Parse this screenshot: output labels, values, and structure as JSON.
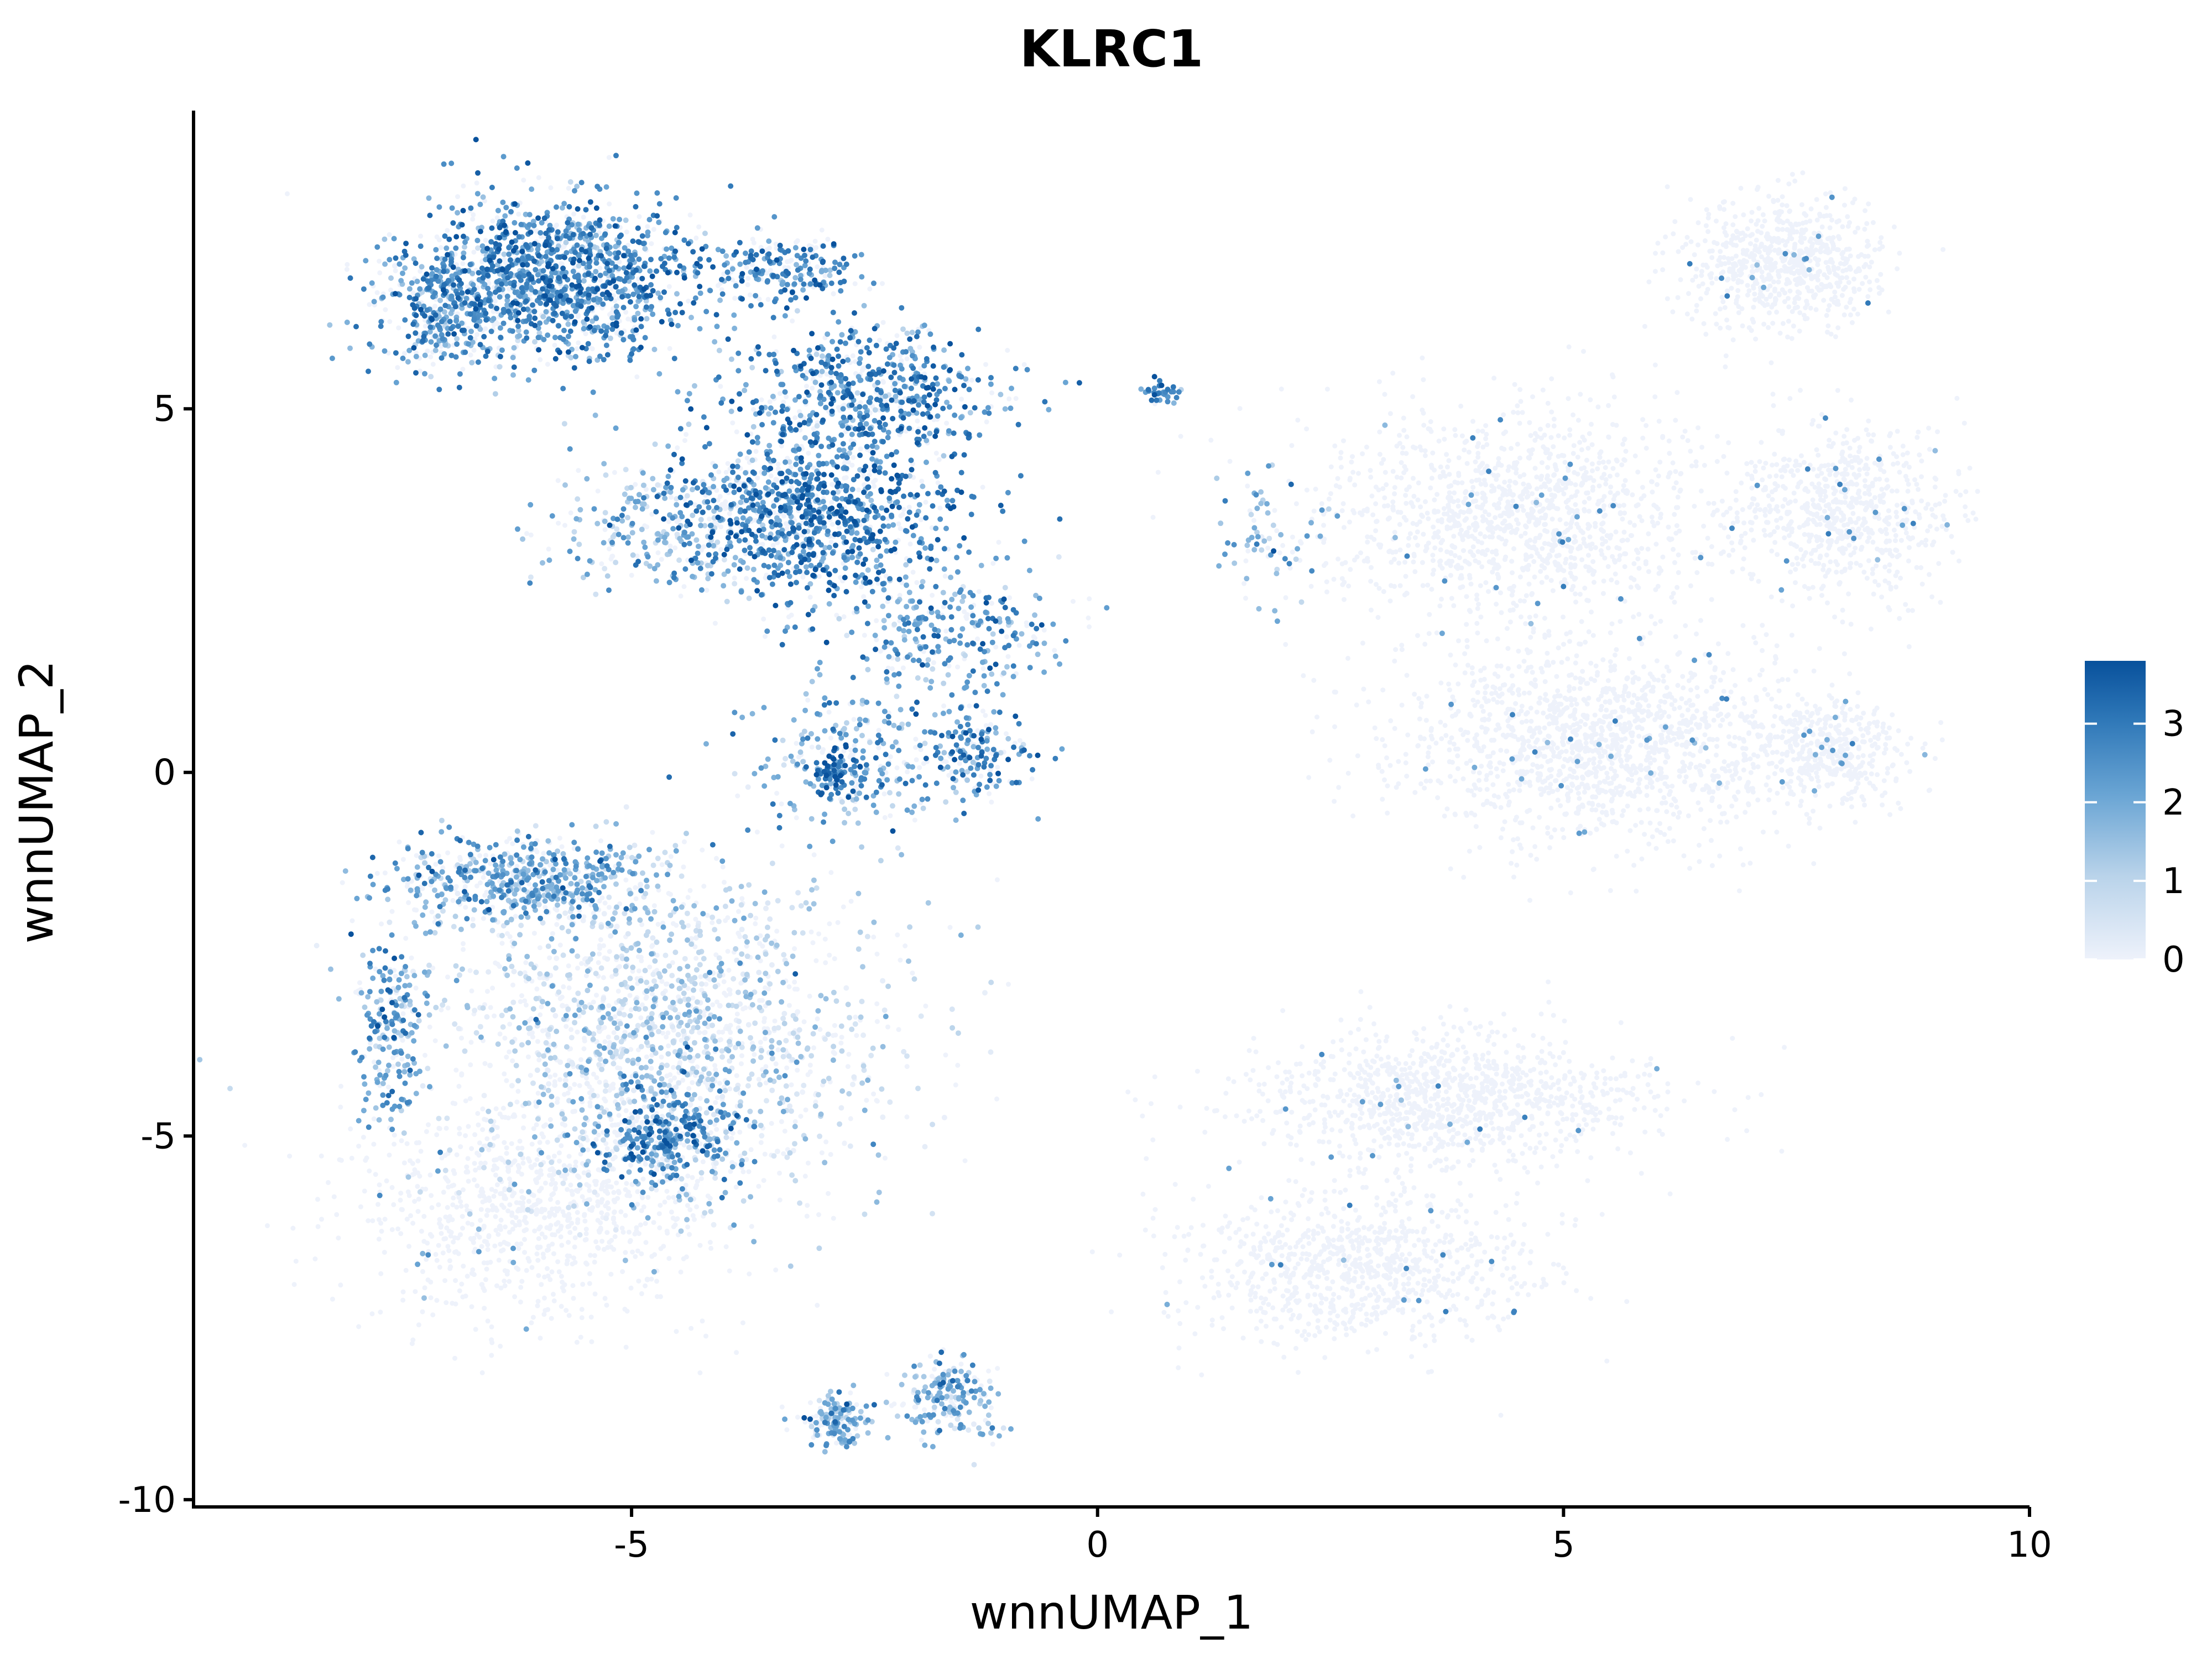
{
  "chart_data": {
    "type": "scatter",
    "title": "KLRC1",
    "xlabel": "wnnUMAP_1",
    "ylabel": "wnnUMAP_2",
    "xlim": [
      -9.7,
      10
    ],
    "ylim": [
      -10.1,
      9.1
    ],
    "x_ticks": [
      -5,
      0,
      5,
      10
    ],
    "x_tick_labels": [
      "-5",
      "0",
      "5",
      "10"
    ],
    "y_ticks": [
      -10,
      -5,
      0,
      5
    ],
    "y_tick_labels": [
      "-10",
      "-5",
      "0",
      "5"
    ],
    "grid": false,
    "legend": {
      "placement": "right",
      "type": "continuous colorbar",
      "min": 0,
      "max": 3.8,
      "ticks": [
        0,
        1,
        2,
        3
      ],
      "tick_labels": [
        "0",
        "1",
        "2",
        "3"
      ],
      "color_low": "#eef2fb",
      "color_high": "#08519c"
    },
    "point_size": "small",
    "clusters": [
      {
        "name": "upper-left-A",
        "center": [
          -5.8,
          6.8
        ],
        "spread": [
          1.0,
          0.7
        ],
        "n": 1400,
        "expr": 2.6
      },
      {
        "name": "upper-left-B",
        "center": [
          -7.0,
          6.3
        ],
        "spread": [
          0.5,
          0.5
        ],
        "n": 300,
        "expr": 2.3
      },
      {
        "name": "upper-left-C",
        "center": [
          -3.4,
          6.9
        ],
        "spread": [
          0.5,
          0.3
        ],
        "n": 220,
        "expr": 2.7
      },
      {
        "name": "upper-mid-A",
        "center": [
          -2.4,
          5.2
        ],
        "spread": [
          0.9,
          0.6
        ],
        "n": 600,
        "expr": 2.5
      },
      {
        "name": "upper-mid-B",
        "center": [
          -3.0,
          3.6
        ],
        "spread": [
          1.0,
          0.8
        ],
        "n": 1000,
        "expr": 2.8
      },
      {
        "name": "upper-mid-C",
        "center": [
          -4.6,
          3.4
        ],
        "spread": [
          0.9,
          0.6
        ],
        "n": 300,
        "expr": 1.6
      },
      {
        "name": "upper-mid-D",
        "center": [
          -1.6,
          2.0
        ],
        "spread": [
          0.8,
          0.6
        ],
        "n": 300,
        "expr": 2.2
      },
      {
        "name": "mid-A",
        "center": [
          -2.6,
          0.2
        ],
        "spread": [
          0.8,
          0.7
        ],
        "n": 250,
        "expr": 2.0
      },
      {
        "name": "mid-B",
        "center": [
          -1.3,
          0.3
        ],
        "spread": [
          0.4,
          0.4
        ],
        "n": 160,
        "expr": 2.6
      },
      {
        "name": "mid-C",
        "center": [
          -2.8,
          0.0
        ],
        "spread": [
          0.18,
          0.2
        ],
        "n": 90,
        "expr": 2.9
      },
      {
        "name": "small-island",
        "center": [
          0.7,
          5.2
        ],
        "spread": [
          0.12,
          0.1
        ],
        "n": 40,
        "expr": 2.7
      },
      {
        "name": "stream",
        "center": [
          1.8,
          3.2
        ],
        "spread": [
          0.5,
          0.6
        ],
        "n": 70,
        "expr": 1.8
      },
      {
        "name": "right-top",
        "center": [
          7.4,
          7.0
        ],
        "spread": [
          0.7,
          0.6
        ],
        "n": 700,
        "expr": 0.05
      },
      {
        "name": "right-mid-A",
        "center": [
          4.5,
          3.5
        ],
        "spread": [
          1.4,
          1.0
        ],
        "n": 1300,
        "expr": 0.06
      },
      {
        "name": "right-mid-B",
        "center": [
          8.0,
          3.6
        ],
        "spread": [
          0.8,
          0.8
        ],
        "n": 700,
        "expr": 0.05
      },
      {
        "name": "right-low-A",
        "center": [
          5.4,
          0.4
        ],
        "spread": [
          1.5,
          0.9
        ],
        "n": 1500,
        "expr": 0.07
      },
      {
        "name": "right-low-B",
        "center": [
          7.9,
          0.3
        ],
        "spread": [
          0.5,
          0.5
        ],
        "n": 400,
        "expr": 0.05
      },
      {
        "name": "lower-left-A",
        "center": [
          -6.1,
          -1.5
        ],
        "spread": [
          1.0,
          0.4
        ],
        "n": 600,
        "expr": 1.9
      },
      {
        "name": "lower-left-B",
        "center": [
          -7.6,
          -3.4
        ],
        "spread": [
          0.25,
          0.9
        ],
        "n": 220,
        "expr": 2.2
      },
      {
        "name": "lower-left-C",
        "center": [
          -4.7,
          -3.6
        ],
        "spread": [
          1.6,
          1.5
        ],
        "n": 1700,
        "expr": 0.7
      },
      {
        "name": "lower-left-D",
        "center": [
          -4.6,
          -5.0
        ],
        "spread": [
          0.5,
          0.5
        ],
        "n": 350,
        "expr": 2.5
      },
      {
        "name": "lower-left-E",
        "center": [
          -6.0,
          -6.0
        ],
        "spread": [
          1.3,
          1.0
        ],
        "n": 900,
        "expr": 0.1
      },
      {
        "name": "lower-right-A",
        "center": [
          3.8,
          -4.5
        ],
        "spread": [
          1.4,
          0.6
        ],
        "n": 1100,
        "expr": 0.06
      },
      {
        "name": "lower-right-B",
        "center": [
          2.8,
          -6.8
        ],
        "spread": [
          1.3,
          0.7
        ],
        "n": 900,
        "expr": 0.05
      },
      {
        "name": "lower-bottom-A",
        "center": [
          -2.8,
          -8.9
        ],
        "spread": [
          0.25,
          0.25
        ],
        "n": 160,
        "expr": 1.7
      },
      {
        "name": "lower-bottom-B",
        "center": [
          -1.6,
          -8.6
        ],
        "spread": [
          0.35,
          0.4
        ],
        "n": 200,
        "expr": 1.8
      }
    ]
  }
}
